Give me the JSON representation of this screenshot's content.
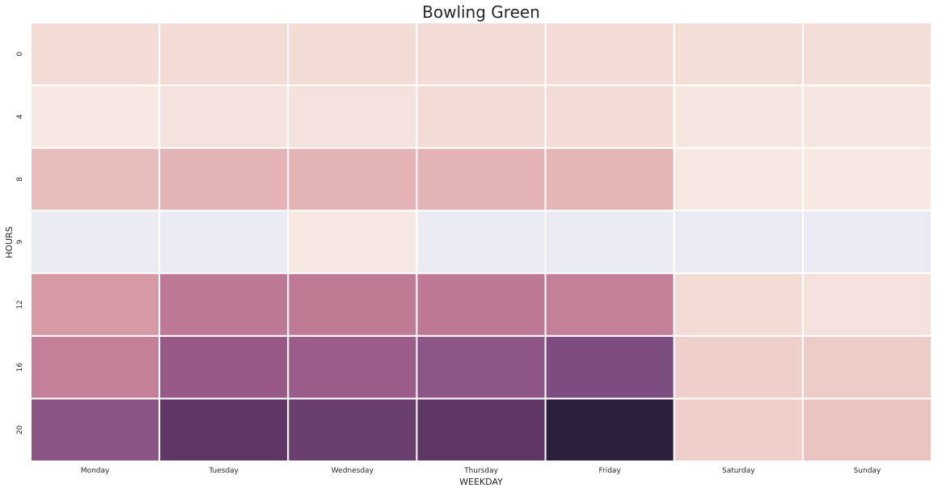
{
  "chart_data": {
    "type": "heatmap",
    "title": "Bowling Green",
    "xlabel": "WEEKDAY",
    "ylabel": "HOURS",
    "x_categories": [
      "Monday",
      "Tuesday",
      "Wednesday",
      "Thursday",
      "Friday",
      "Saturday",
      "Sunday"
    ],
    "y_categories": [
      "0",
      "4",
      "8",
      "9",
      "12",
      "16",
      "20"
    ],
    "values": [
      [
        0.08,
        0.08,
        0.08,
        0.08,
        0.08,
        0.07,
        0.07
      ],
      [
        0.03,
        0.05,
        0.06,
        0.08,
        0.08,
        0.04,
        0.04
      ],
      [
        0.22,
        0.27,
        0.27,
        0.27,
        0.26,
        0.03,
        0.03
      ],
      [
        null,
        null,
        0.03,
        null,
        null,
        null,
        null
      ],
      [
        0.38,
        0.52,
        0.51,
        0.52,
        0.49,
        0.08,
        0.06
      ],
      [
        0.49,
        0.65,
        0.64,
        0.68,
        0.74,
        0.13,
        0.15
      ],
      [
        0.69,
        0.86,
        0.82,
        0.86,
        1.0,
        0.13,
        0.19
      ]
    ],
    "missing_color": "#EAEAF2",
    "colormap": [
      "#FAF0EA",
      "#EFD0CA",
      "#E5B8B8",
      "#D89AA5",
      "#C27D97",
      "#9E5E89",
      "#7A4B80",
      "#5B3461",
      "#2C1E3D"
    ],
    "colorbar": false,
    "grid": false
  }
}
